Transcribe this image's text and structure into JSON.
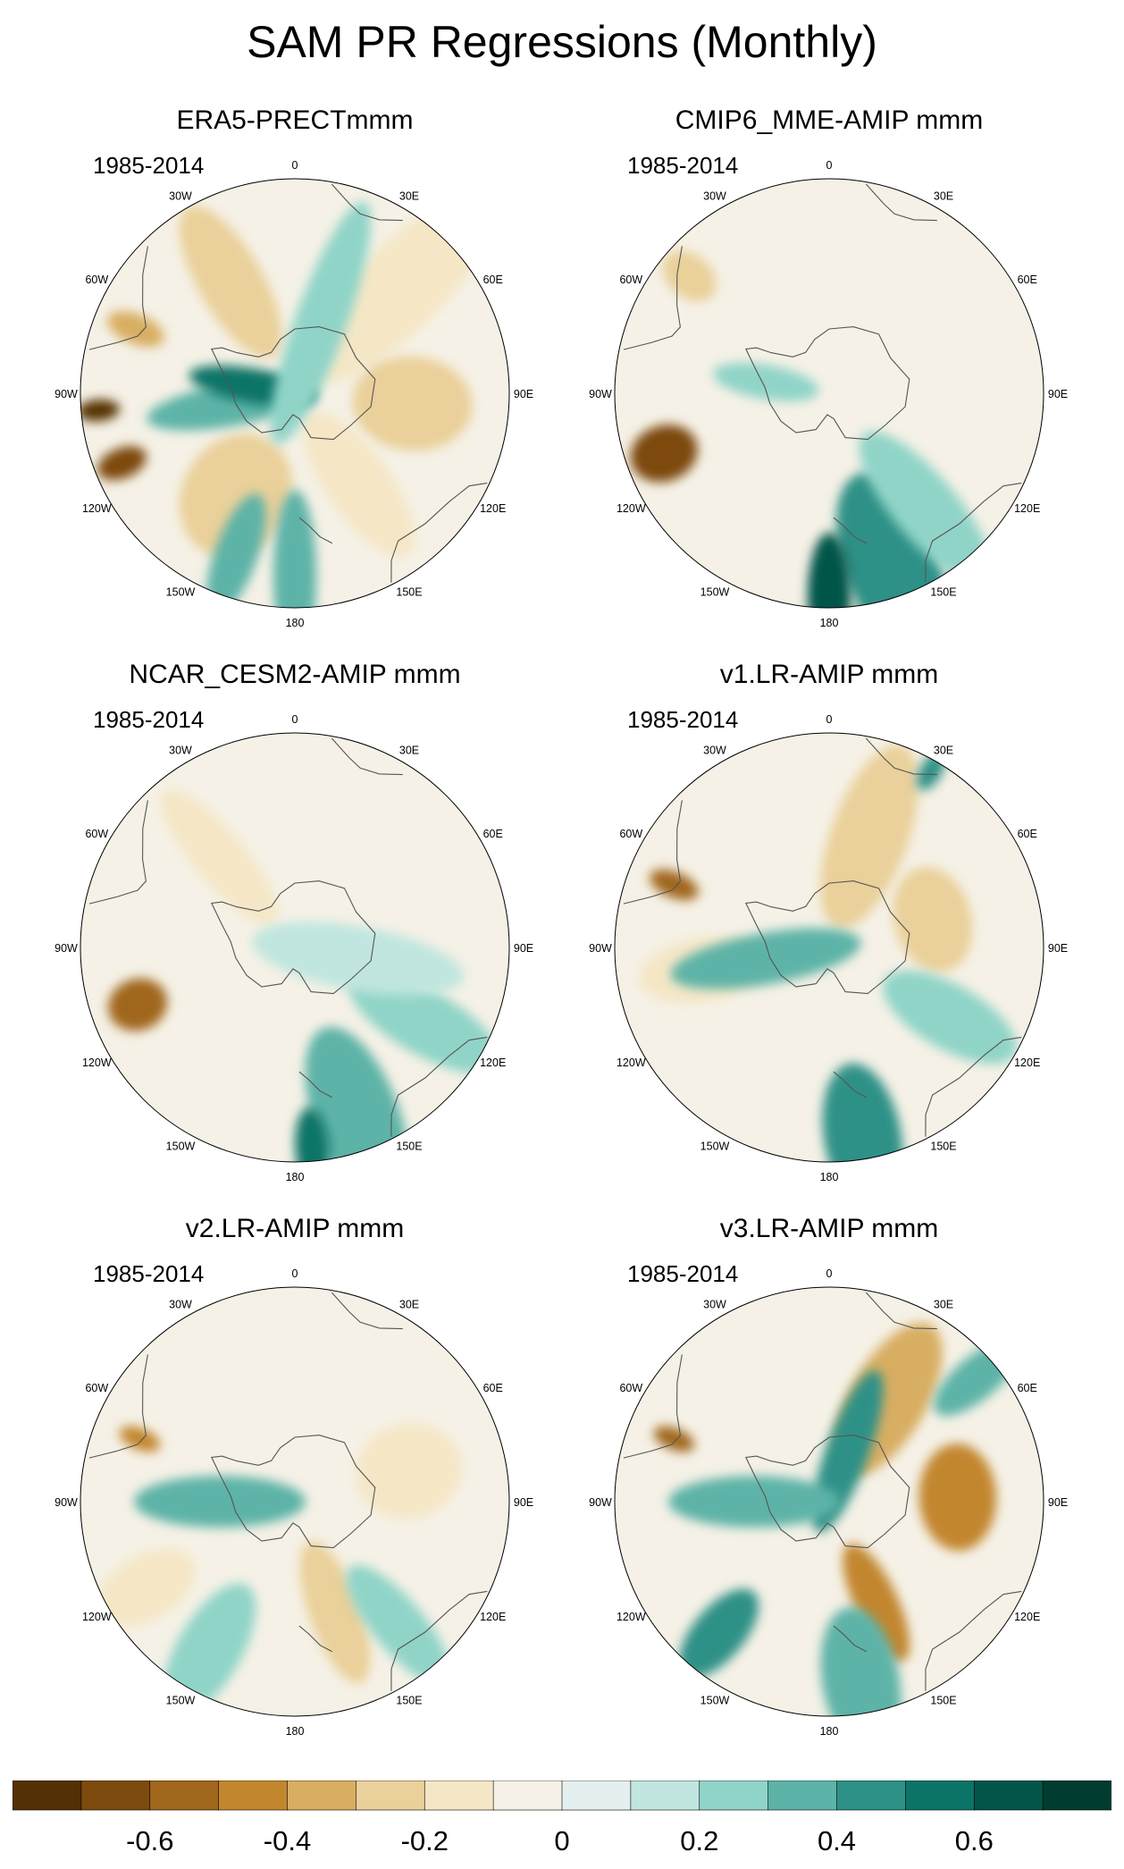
{
  "figure": {
    "title": "SAM PR Regressions (Monthly)"
  },
  "longitude_labels": [
    "0",
    "30E",
    "60E",
    "90E",
    "120E",
    "150E",
    "180",
    "150W",
    "120W",
    "90W",
    "60W",
    "30W"
  ],
  "panels": [
    {
      "title": "ERA5-PRECTmmm",
      "period": "1985-2014",
      "anomalies": [
        {
          "lon": -112,
          "colat": 0.87,
          "ar": 0.07,
          "at": 12,
          "v": -0.7
        },
        {
          "lon": -95,
          "colat": 0.92,
          "ar": 0.05,
          "at": 10,
          "v": -0.75
        },
        {
          "lon": -68,
          "colat": 0.8,
          "ar": 0.07,
          "at": 14,
          "v": -0.4
        },
        {
          "lon": -30,
          "colat": 0.6,
          "ar": 0.15,
          "at": 40,
          "v": -0.3
        },
        {
          "lon": 45,
          "colat": 0.7,
          "ar": 0.2,
          "at": 60,
          "v": -0.2
        },
        {
          "lon": 95,
          "colat": 0.55,
          "ar": 0.22,
          "at": 28,
          "v": -0.3
        },
        {
          "lon": 145,
          "colat": 0.52,
          "ar": 0.15,
          "at": 40,
          "v": -0.2
        },
        {
          "lon": -150,
          "colat": 0.55,
          "ar": 0.25,
          "at": 30,
          "v": -0.25
        },
        {
          "lon": -100,
          "colat": 0.3,
          "ar": 0.1,
          "at": 40,
          "v": 0.3
        },
        {
          "lon": -80,
          "colat": 0.2,
          "ar": 0.08,
          "at": 30,
          "v": 0.5
        },
        {
          "lon": 180,
          "colat": 0.85,
          "ar": 0.1,
          "at": 40,
          "v": 0.3
        },
        {
          "lon": -160,
          "colat": 0.8,
          "ar": 0.1,
          "at": 30,
          "v": 0.35
        },
        {
          "lon": 20,
          "colat": 0.35,
          "ar": 0.12,
          "at": 60,
          "v": 0.2
        }
      ]
    },
    {
      "title": "CMIP6_MME-AMIP  mmm",
      "period": "1985-2014",
      "anomalies": [
        {
          "lon": -110,
          "colat": 0.82,
          "ar": 0.13,
          "at": 16,
          "v": -0.65
        },
        {
          "lon": -50,
          "colat": 0.85,
          "ar": 0.1,
          "at": 14,
          "v": -0.25
        },
        {
          "lon": 160,
          "colat": 0.85,
          "ar": 0.22,
          "at": 45,
          "v": 0.4
        },
        {
          "lon": 180,
          "colat": 0.95,
          "ar": 0.1,
          "at": 30,
          "v": 0.6
        },
        {
          "lon": 140,
          "colat": 0.7,
          "ar": 0.15,
          "at": 45,
          "v": 0.2
        },
        {
          "lon": -80,
          "colat": 0.3,
          "ar": 0.08,
          "at": 25,
          "v": 0.25
        }
      ]
    },
    {
      "title": "NCAR_CESM2-AMIP  mmm",
      "period": "1985-2014",
      "anomalies": [
        {
          "lon": -110,
          "colat": 0.78,
          "ar": 0.12,
          "at": 14,
          "v": -0.6
        },
        {
          "lon": -40,
          "colat": 0.55,
          "ar": 0.12,
          "at": 40,
          "v": -0.2
        },
        {
          "lon": 160,
          "colat": 0.85,
          "ar": 0.2,
          "at": 45,
          "v": 0.35
        },
        {
          "lon": 175,
          "colat": 0.95,
          "ar": 0.08,
          "at": 20,
          "v": 0.55
        },
        {
          "lon": 120,
          "colat": 0.7,
          "ar": 0.15,
          "at": 40,
          "v": 0.2
        },
        {
          "lon": 100,
          "colat": 0.3,
          "ar": 0.15,
          "at": 50,
          "v": 0.15
        }
      ]
    },
    {
      "title": "v1.LR-AMIP  mmm",
      "period": "1985-2014",
      "anomalies": [
        {
          "lon": -68,
          "colat": 0.78,
          "ar": 0.06,
          "at": 12,
          "v": -0.6
        },
        {
          "lon": 75,
          "colat": 0.5,
          "ar": 0.25,
          "at": 18,
          "v": -0.3
        },
        {
          "lon": 20,
          "colat": 0.55,
          "ar": 0.18,
          "at": 45,
          "v": -0.25
        },
        {
          "lon": -100,
          "colat": 0.6,
          "ar": 0.15,
          "at": 30,
          "v": -0.2
        },
        {
          "lon": 170,
          "colat": 0.9,
          "ar": 0.18,
          "at": 35,
          "v": 0.45
        },
        {
          "lon": 120,
          "colat": 0.65,
          "ar": 0.15,
          "at": 35,
          "v": 0.25
        },
        {
          "lon": -100,
          "colat": 0.3,
          "ar": 0.12,
          "at": 45,
          "v": 0.3
        },
        {
          "lon": 30,
          "colat": 0.95,
          "ar": 0.05,
          "at": 10,
          "v": 0.4
        }
      ]
    },
    {
      "title": "v2.LR-AMIP  mmm",
      "period": "1985-2014",
      "anomalies": [
        {
          "lon": -68,
          "colat": 0.78,
          "ar": 0.05,
          "at": 10,
          "v": -0.5
        },
        {
          "lon": 75,
          "colat": 0.55,
          "ar": 0.22,
          "at": 25,
          "v": -0.2
        },
        {
          "lon": 160,
          "colat": 0.55,
          "ar": 0.12,
          "at": 35,
          "v": -0.25
        },
        {
          "lon": -120,
          "colat": 0.8,
          "ar": 0.15,
          "at": 25,
          "v": -0.15
        },
        {
          "lon": -90,
          "colat": 0.35,
          "ar": 0.12,
          "at": 40,
          "v": 0.3
        },
        {
          "lon": -150,
          "colat": 0.8,
          "ar": 0.15,
          "at": 35,
          "v": 0.25
        },
        {
          "lon": 140,
          "colat": 0.75,
          "ar": 0.12,
          "at": 35,
          "v": 0.2
        }
      ]
    },
    {
      "title": "v3.LR-AMIP  mmm",
      "period": "1985-2014",
      "anomalies": [
        {
          "lon": -68,
          "colat": 0.78,
          "ar": 0.05,
          "at": 10,
          "v": -0.6
        },
        {
          "lon": 88,
          "colat": 0.6,
          "ar": 0.25,
          "at": 18,
          "v": -0.5
        },
        {
          "lon": 30,
          "colat": 0.55,
          "ar": 0.18,
          "at": 40,
          "v": -0.35
        },
        {
          "lon": 155,
          "colat": 0.52,
          "ar": 0.1,
          "at": 30,
          "v": -0.5
        },
        {
          "lon": 20,
          "colat": 0.25,
          "ar": 0.1,
          "at": 40,
          "v": 0.45
        },
        {
          "lon": -140,
          "colat": 0.8,
          "ar": 0.12,
          "at": 25,
          "v": 0.45
        },
        {
          "lon": 170,
          "colat": 0.85,
          "ar": 0.18,
          "at": 35,
          "v": 0.35
        },
        {
          "lon": -90,
          "colat": 0.35,
          "ar": 0.12,
          "at": 40,
          "v": 0.3
        },
        {
          "lon": 50,
          "colat": 0.9,
          "ar": 0.1,
          "at": 25,
          "v": 0.3
        }
      ]
    }
  ],
  "colorbar": {
    "levels": [
      -0.7,
      -0.6,
      -0.5,
      -0.4,
      -0.3,
      -0.2,
      -0.1,
      0,
      0.1,
      0.2,
      0.3,
      0.4,
      0.5,
      0.6,
      0.7
    ],
    "colors": [
      "#543005",
      "#7d4a0e",
      "#a0661b",
      "#c2862e",
      "#d8ae62",
      "#ead09a",
      "#f5e7c6",
      "#f5f1e6",
      "#e4f0ef",
      "#c0e6df",
      "#90d4c8",
      "#5db3a7",
      "#2d9187",
      "#0c7467",
      "#03554a",
      "#003c30"
    ],
    "tick_labels": [
      {
        "label": "-0.6",
        "level": -0.6
      },
      {
        "label": "-0.4",
        "level": -0.4
      },
      {
        "label": "-0.2",
        "level": -0.2
      },
      {
        "label": "0",
        "level": 0
      },
      {
        "label": "0.2",
        "level": 0.2
      },
      {
        "label": "0.4",
        "level": 0.4
      },
      {
        "label": "0.6",
        "level": 0.6
      }
    ]
  }
}
